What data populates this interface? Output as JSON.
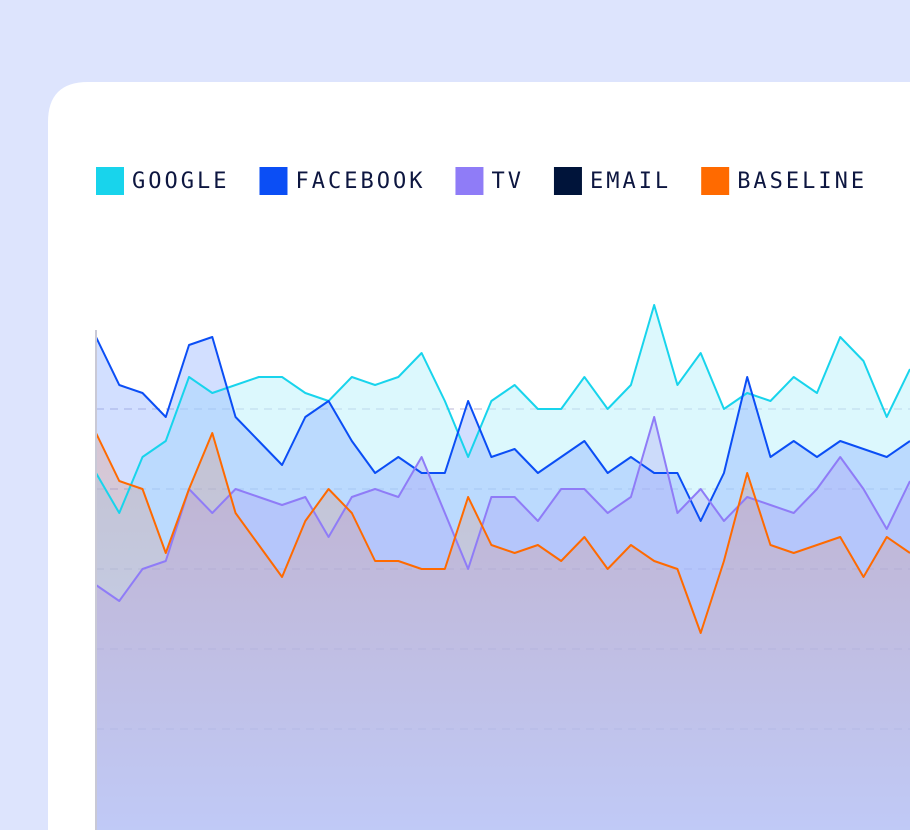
{
  "chart_data": {
    "type": "area",
    "x": [
      0,
      1,
      2,
      3,
      4,
      5,
      6,
      7,
      8,
      9,
      10,
      11,
      12,
      13,
      14,
      15,
      16,
      17,
      18,
      19,
      20,
      21,
      22,
      23,
      24,
      25,
      26,
      27,
      28,
      29,
      30,
      31,
      32,
      33,
      34,
      35
    ],
    "xlim": [
      0,
      35
    ],
    "ylim": [
      -3,
      70
    ],
    "yticks": [
      10,
      20,
      30,
      40,
      50
    ],
    "grid": true,
    "legend": "top",
    "series": [
      {
        "name": "GOOGLE",
        "color": "#18d4ec",
        "values": [
          42,
          37,
          44,
          46,
          54,
          52,
          53,
          54,
          54,
          52,
          51,
          54,
          53,
          54,
          57,
          51,
          44,
          51,
          53,
          50,
          50,
          54,
          50,
          53,
          63,
          53,
          57,
          50,
          52,
          51,
          54,
          52,
          59,
          56,
          49,
          55
        ]
      },
      {
        "name": "FACEBOOK",
        "color": "#0b4ef5",
        "values": [
          59,
          53,
          52,
          49,
          58,
          59,
          49,
          46,
          43,
          49,
          51,
          46,
          42,
          44,
          42,
          42,
          51,
          44,
          45,
          42,
          44,
          46,
          42,
          44,
          42,
          42,
          36,
          42,
          54,
          44,
          46,
          44,
          46,
          45,
          44,
          46
        ]
      },
      {
        "name": "TV",
        "color": "#8f7cf7",
        "values": [
          28,
          26,
          30,
          31,
          40,
          37,
          40,
          39,
          38,
          39,
          34,
          39,
          40,
          39,
          44,
          37,
          30,
          39,
          39,
          36,
          40,
          40,
          37,
          39,
          49,
          37,
          40,
          36,
          39,
          38,
          37,
          40,
          44,
          40,
          35,
          41
        ]
      },
      {
        "name": "EMAIL",
        "color": "#00143a",
        "values": [
          null,
          null,
          null,
          null,
          null,
          null,
          null,
          null,
          null,
          null,
          null,
          null,
          null,
          null,
          null,
          null,
          null,
          null,
          null,
          null,
          null,
          null,
          null,
          null,
          null,
          null,
          null,
          null,
          null,
          null,
          null,
          null,
          null,
          null,
          null,
          null
        ]
      },
      {
        "name": "BASELINE",
        "color": "#ff6a00",
        "values": [
          47,
          41,
          40,
          32,
          40,
          47,
          37,
          33,
          29,
          36,
          40,
          37,
          31,
          31,
          30,
          30,
          39,
          33,
          32,
          33,
          31,
          34,
          30,
          33,
          31,
          30,
          22,
          31,
          42,
          33,
          32,
          33,
          34,
          29,
          34,
          32
        ]
      }
    ]
  }
}
